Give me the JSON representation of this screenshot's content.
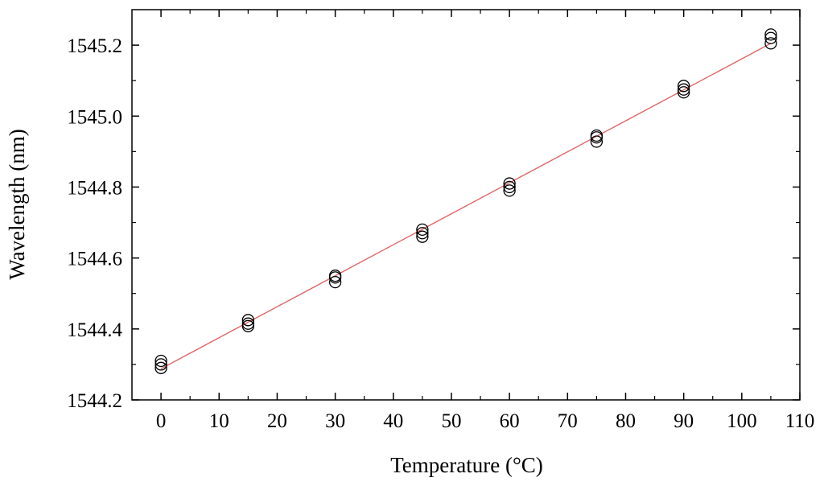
{
  "chart_data": {
    "type": "scatter",
    "title": "",
    "xlabel": "Temperature (°C)",
    "ylabel": "Wavelength (nm)",
    "xlim": [
      -5,
      110
    ],
    "ylim": [
      1544.2,
      1545.3
    ],
    "x_ticks": [
      0,
      10,
      20,
      30,
      40,
      50,
      60,
      70,
      80,
      90,
      100,
      110
    ],
    "x_tick_labels": [
      "0",
      "10",
      "20",
      "30",
      "40",
      "50",
      "60",
      "70",
      "80",
      "90",
      "100",
      "110"
    ],
    "y_ticks": [
      1544.2,
      1544.4,
      1544.6,
      1544.8,
      1545.0,
      1545.2
    ],
    "y_tick_labels": [
      "1544.2",
      "1544.4",
      "1544.6",
      "1544.8",
      "1545.0",
      "1545.2"
    ],
    "grid": false,
    "legend": "none",
    "series": [
      {
        "type": "scatter",
        "marker": "open-circle",
        "color": "#000000",
        "points": [
          [
            0,
            1544.31
          ],
          [
            0,
            1544.3
          ],
          [
            0,
            1544.29
          ],
          [
            15,
            1544.425
          ],
          [
            15,
            1544.415
          ],
          [
            15,
            1544.408
          ],
          [
            30,
            1544.55
          ],
          [
            30,
            1544.545
          ],
          [
            30,
            1544.532
          ],
          [
            45,
            1544.68
          ],
          [
            45,
            1544.67
          ],
          [
            45,
            1544.66
          ],
          [
            60,
            1544.81
          ],
          [
            60,
            1544.8
          ],
          [
            60,
            1544.79
          ],
          [
            75,
            1544.945
          ],
          [
            75,
            1544.94
          ],
          [
            75,
            1544.928
          ],
          [
            90,
            1545.085
          ],
          [
            90,
            1545.075
          ],
          [
            90,
            1545.067
          ],
          [
            105,
            1545.23
          ],
          [
            105,
            1545.22
          ],
          [
            105,
            1545.205
          ]
        ]
      },
      {
        "type": "line",
        "fit": "linear",
        "color": "#e06666",
        "points": [
          [
            0,
            1544.288
          ],
          [
            105,
            1545.205
          ]
        ]
      }
    ]
  }
}
